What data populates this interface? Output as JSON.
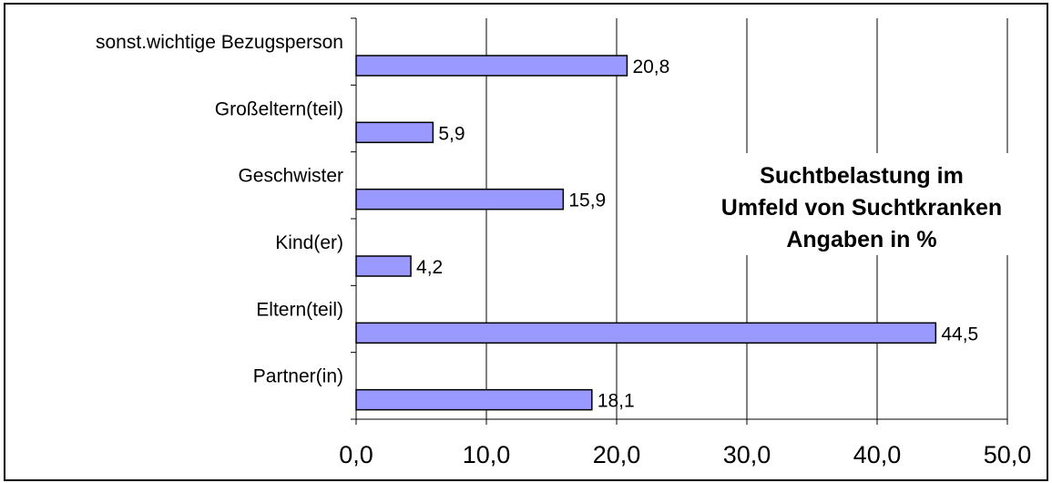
{
  "chart_data": {
    "type": "bar",
    "orientation": "horizontal",
    "title_lines": [
      "Suchtbelastung im",
      "Umfeld von Suchtkranken",
      "Angaben in %"
    ],
    "categories": [
      "sonst.wichtige Bezugsperson",
      "Großeltern(teil)",
      "Geschwister",
      "Kind(er)",
      "Eltern(teil)",
      "Partner(in)"
    ],
    "values": [
      20.8,
      5.9,
      15.9,
      4.2,
      44.5,
      18.1
    ],
    "value_labels": [
      "20,8",
      "5,9",
      "15,9",
      "4,2",
      "44,5",
      "18,1"
    ],
    "xlim": [
      0,
      50
    ],
    "x_ticks": [
      0,
      10,
      20,
      30,
      40,
      50
    ],
    "x_tick_labels": [
      "0,0",
      "10,0",
      "20,0",
      "30,0",
      "40,0",
      "50,0"
    ],
    "grid": "vertical",
    "legend": "none",
    "colors": {
      "bar_fill": "#9999ff",
      "bar_stroke": "#000000",
      "grid": "#000000"
    }
  }
}
